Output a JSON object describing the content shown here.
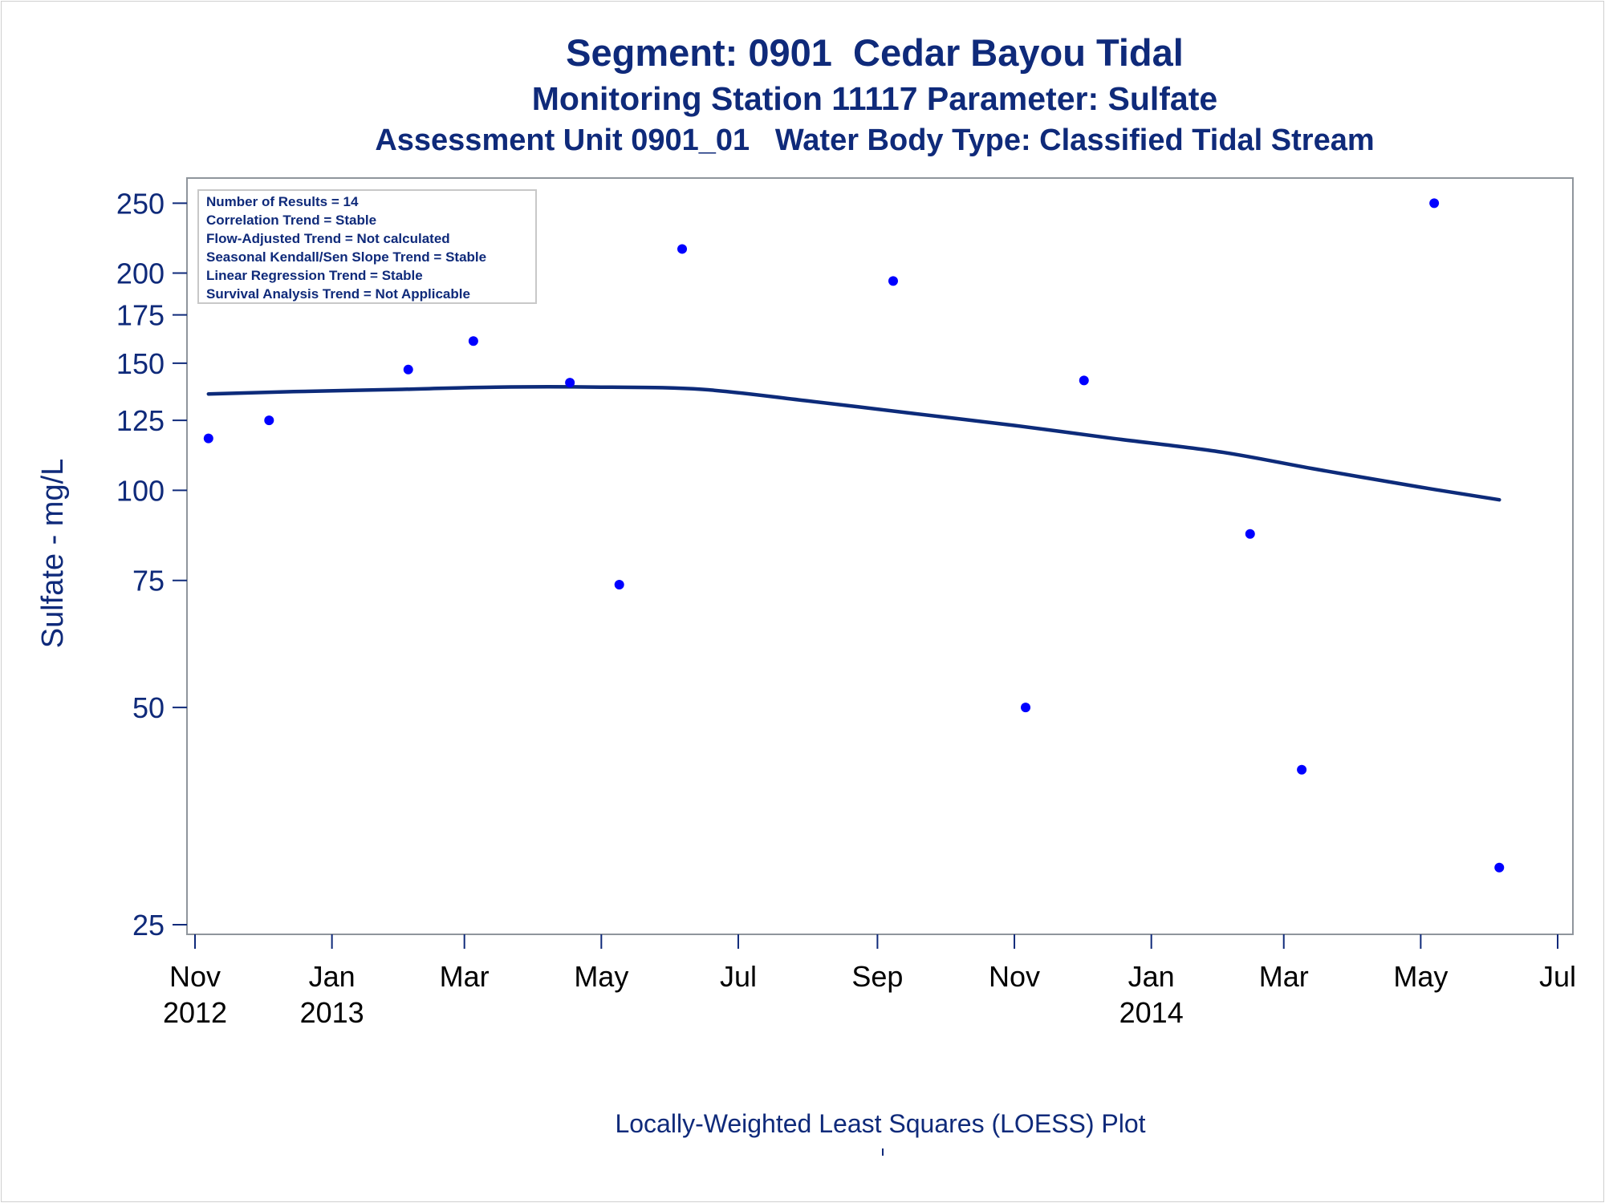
{
  "chart_data": {
    "type": "scatter",
    "title": "Segment: 0901  Cedar Bayou Tidal",
    "subtitle": "Monitoring Station 11117 Parameter: Sulfate",
    "subtitle2": "Assessment Unit 0901_01   Water Body Type: Classified Tidal Stream",
    "xlabel": "",
    "ylabel": "Sulfate - mg/L",
    "footnote": "Locally-Weighted Least Squares (LOESS) Plot",
    "yscale": "log",
    "ylim": [
      25,
      260
    ],
    "xlim": [
      "2012-11-01",
      "2014-07-01"
    ],
    "yticks": [
      25,
      50,
      75,
      100,
      125,
      150,
      175,
      200,
      250
    ],
    "xticks": [
      {
        "date": "2012-11-01",
        "label": "Nov",
        "year": "2012"
      },
      {
        "date": "2013-01-01",
        "label": "Jan",
        "year": "2013"
      },
      {
        "date": "2013-03-01",
        "label": "Mar",
        "year": ""
      },
      {
        "date": "2013-05-01",
        "label": "May",
        "year": ""
      },
      {
        "date": "2013-07-01",
        "label": "Jul",
        "year": ""
      },
      {
        "date": "2013-09-01",
        "label": "Sep",
        "year": ""
      },
      {
        "date": "2013-11-01",
        "label": "Nov",
        "year": ""
      },
      {
        "date": "2014-01-01",
        "label": "Jan",
        "year": "2014"
      },
      {
        "date": "2014-03-01",
        "label": "Mar",
        "year": ""
      },
      {
        "date": "2014-05-01",
        "label": "May",
        "year": ""
      },
      {
        "date": "2014-07-01",
        "label": "Jul",
        "year": ""
      }
    ],
    "points": [
      {
        "x": "2012-11-07",
        "y": 118
      },
      {
        "x": "2012-12-04",
        "y": 125
      },
      {
        "x": "2013-02-04",
        "y": 147
      },
      {
        "x": "2013-03-05",
        "y": 161
      },
      {
        "x": "2013-04-17",
        "y": 141
      },
      {
        "x": "2013-05-09",
        "y": 74
      },
      {
        "x": "2013-06-06",
        "y": 216
      },
      {
        "x": "2013-09-08",
        "y": 195
      },
      {
        "x": "2013-11-06",
        "y": 50
      },
      {
        "x": "2013-12-02",
        "y": 142
      },
      {
        "x": "2014-02-14",
        "y": 87
      },
      {
        "x": "2014-03-09",
        "y": 41
      },
      {
        "x": "2014-05-07",
        "y": 250
      },
      {
        "x": "2014-06-05",
        "y": 30
      }
    ],
    "loess": [
      {
        "x": "2012-11-07",
        "y": 136
      },
      {
        "x": "2012-12-15",
        "y": 137
      },
      {
        "x": "2013-02-01",
        "y": 138
      },
      {
        "x": "2013-03-15",
        "y": 139
      },
      {
        "x": "2013-05-01",
        "y": 139
      },
      {
        "x": "2013-06-15",
        "y": 138
      },
      {
        "x": "2013-08-01",
        "y": 133
      },
      {
        "x": "2013-09-15",
        "y": 128
      },
      {
        "x": "2013-11-01",
        "y": 123
      },
      {
        "x": "2013-12-15",
        "y": 118
      },
      {
        "x": "2014-02-01",
        "y": 113
      },
      {
        "x": "2014-03-15",
        "y": 107
      },
      {
        "x": "2014-05-01",
        "y": 101
      },
      {
        "x": "2014-06-05",
        "y": 97
      }
    ],
    "stats_box": [
      "Number of Results = 14",
      "Correlation Trend = Stable",
      "Flow-Adjusted Trend = Not calculated",
      "Seasonal Kendall/Sen Slope Trend = Stable",
      "Linear Regression Trend = Stable",
      "Survival Analysis Trend = Not Applicable"
    ],
    "colors": {
      "text": "#0f2a7a",
      "line": "#0d2b7a",
      "points": "#0000ff",
      "axis": "#8f959c"
    }
  }
}
